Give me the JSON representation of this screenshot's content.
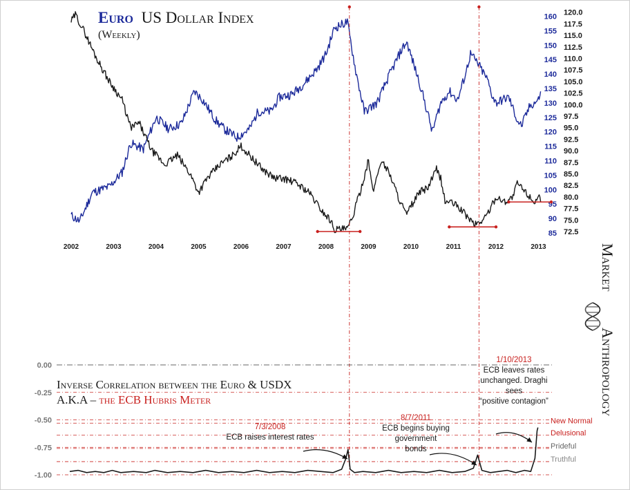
{
  "colors": {
    "euro": "#1a1a1a",
    "usdx": "#1c2a9a",
    "red": "#c8201e",
    "gray": "#666666",
    "bg": "#ffffff"
  },
  "branding": {
    "word1": "Market",
    "word2": "Anthropology",
    "logo_icon": "dna-helix-icon"
  },
  "chart_data": [
    {
      "type": "line",
      "title_part1": "Euro",
      "title_part2": "US Dollar Index",
      "subtitle": "(Weekly)",
      "x_ticks": [
        "2002",
        "2003",
        "2004",
        "2005",
        "2006",
        "2007",
        "2008",
        "2009",
        "2010",
        "2011",
        "2012",
        "2013"
      ],
      "y_left_ticks": [
        "160",
        "155",
        "150",
        "145",
        "140",
        "135",
        "130",
        "125",
        "120",
        "115",
        "110",
        "105",
        "100",
        "95",
        "90",
        "85"
      ],
      "y_right_ticks": [
        "120.0",
        "117.5",
        "115.0",
        "112.5",
        "110.0",
        "107.5",
        "105.0",
        "102.5",
        "100.0",
        "97.5",
        "95.0",
        "92.5",
        "90.0",
        "87.5",
        "85.0",
        "82.5",
        "80.0",
        "77.5",
        "75.0",
        "72.5"
      ],
      "y_left_range": [
        85,
        160
      ],
      "y_right_range": [
        72.5,
        120
      ],
      "series": [
        {
          "name": "Euro",
          "color": "#1c2a9a",
          "axis": "left",
          "points": [
            [
              2002.0,
              91
            ],
            [
              2002.2,
              89
            ],
            [
              2002.5,
              99
            ],
            [
              2002.9,
              101
            ],
            [
              2003.2,
              106
            ],
            [
              2003.4,
              116
            ],
            [
              2003.7,
              114
            ],
            [
              2004.0,
              125
            ],
            [
              2004.3,
              121
            ],
            [
              2004.6,
              123
            ],
            [
              2004.9,
              134
            ],
            [
              2005.1,
              131
            ],
            [
              2005.4,
              124
            ],
            [
              2005.6,
              121
            ],
            [
              2005.9,
              118
            ],
            [
              2006.2,
              121
            ],
            [
              2006.4,
              127
            ],
            [
              2006.7,
              127
            ],
            [
              2006.9,
              132
            ],
            [
              2007.2,
              133
            ],
            [
              2007.5,
              137
            ],
            [
              2007.8,
              142
            ],
            [
              2008.0,
              147
            ],
            [
              2008.2,
              156
            ],
            [
              2008.5,
              158
            ],
            [
              2008.7,
              141
            ],
            [
              2008.9,
              127
            ],
            [
              2009.2,
              130
            ],
            [
              2009.5,
              140
            ],
            [
              2009.8,
              149
            ],
            [
              2009.9,
              151
            ],
            [
              2010.2,
              137
            ],
            [
              2010.4,
              126
            ],
            [
              2010.5,
              120
            ],
            [
              2010.7,
              130
            ],
            [
              2010.9,
              134
            ],
            [
              2011.1,
              131
            ],
            [
              2011.3,
              141
            ],
            [
              2011.4,
              147
            ],
            [
              2011.6,
              143
            ],
            [
              2011.8,
              138
            ],
            [
              2011.9,
              133
            ],
            [
              2012.0,
              130
            ],
            [
              2012.3,
              132
            ],
            [
              2012.5,
              124
            ],
            [
              2012.6,
              122
            ],
            [
              2012.8,
              129
            ],
            [
              2013.0,
              131
            ],
            [
              2013.05,
              134
            ]
          ]
        },
        {
          "name": "US Dollar Index",
          "color": "#1a1a1a",
          "axis": "right",
          "points": [
            [
              2002.0,
              118
            ],
            [
              2002.1,
              119.5
            ],
            [
              2002.3,
              116
            ],
            [
              2002.6,
              110
            ],
            [
              2002.9,
              105
            ],
            [
              2003.2,
              101
            ],
            [
              2003.4,
              95
            ],
            [
              2003.6,
              96
            ],
            [
              2003.9,
              90
            ],
            [
              2004.2,
              87
            ],
            [
              2004.5,
              89
            ],
            [
              2004.8,
              85
            ],
            [
              2005.0,
              81
            ],
            [
              2005.2,
              84
            ],
            [
              2005.5,
              87
            ],
            [
              2005.8,
              89
            ],
            [
              2006.0,
              91
            ],
            [
              2006.2,
              89
            ],
            [
              2006.5,
              86
            ],
            [
              2006.8,
              84
            ],
            [
              2007.0,
              84
            ],
            [
              2007.3,
              83
            ],
            [
              2007.6,
              81
            ],
            [
              2007.9,
              77
            ],
            [
              2008.1,
              75
            ],
            [
              2008.2,
              73
            ],
            [
              2008.5,
              73
            ],
            [
              2008.6,
              75
            ],
            [
              2008.8,
              81
            ],
            [
              2009.0,
              88
            ],
            [
              2009.1,
              81
            ],
            [
              2009.3,
              88
            ],
            [
              2009.5,
              85
            ],
            [
              2009.7,
              80
            ],
            [
              2009.9,
              76
            ],
            [
              2010.0,
              78
            ],
            [
              2010.2,
              81
            ],
            [
              2010.4,
              82
            ],
            [
              2010.6,
              86
            ],
            [
              2010.7,
              84
            ],
            [
              2010.8,
              79
            ],
            [
              2010.9,
              79
            ],
            [
              2011.1,
              78
            ],
            [
              2011.3,
              76
            ],
            [
              2011.5,
              74
            ],
            [
              2011.7,
              75
            ],
            [
              2011.9,
              78
            ],
            [
              2012.0,
              80
            ],
            [
              2012.2,
              79
            ],
            [
              2012.4,
              80
            ],
            [
              2012.5,
              83
            ],
            [
              2012.7,
              81
            ],
            [
              2012.9,
              79
            ],
            [
              2013.0,
              80
            ],
            [
              2013.05,
              79
            ]
          ]
        }
      ],
      "support_lines": [
        {
          "x_from": 2007.8,
          "x_to": 2008.8,
          "y": 72.5
        },
        {
          "x_from": 2010.9,
          "x_to": 2012.0,
          "y": 73.5
        },
        {
          "x_from": 2012.3,
          "x_to": 2013.3,
          "y": 78.9
        }
      ],
      "event_years": [
        2008.55,
        2011.6
      ]
    },
    {
      "type": "line",
      "title_line1": "Inverse Correlation between the Euro & USDX",
      "title_line2_prefix": "A.K.A – ",
      "title_line2_red": "the ECB Hubris Meter",
      "y_ticks": [
        "0.00",
        "-0.25",
        "-0.50",
        "-0.75",
        "-1.00"
      ],
      "y_range": [
        -1.0,
        0.0
      ],
      "levels": [
        {
          "label": "New Normal",
          "value": -0.53,
          "color": "#c8201e"
        },
        {
          "label": "Delusional",
          "value": -0.64,
          "color": "#c8201e"
        },
        {
          "label": "Prideful",
          "value": -0.76,
          "color": "#666666"
        },
        {
          "label": "Truthful",
          "value": -0.88,
          "color": "#888888"
        }
      ],
      "series": [
        {
          "name": "Correlation",
          "color": "#1a1a1a",
          "points": [
            [
              2002.0,
              -0.97
            ],
            [
              2002.2,
              -0.96
            ],
            [
              2002.4,
              -0.98
            ],
            [
              2002.6,
              -0.97
            ],
            [
              2002.8,
              -0.98
            ],
            [
              2003.0,
              -0.96
            ],
            [
              2003.2,
              -0.98
            ],
            [
              2003.5,
              -0.97
            ],
            [
              2003.8,
              -0.98
            ],
            [
              2004.0,
              -0.96
            ],
            [
              2004.3,
              -0.98
            ],
            [
              2004.6,
              -0.97
            ],
            [
              2004.9,
              -0.98
            ],
            [
              2005.2,
              -0.96
            ],
            [
              2005.5,
              -0.98
            ],
            [
              2005.8,
              -0.97
            ],
            [
              2006.1,
              -0.98
            ],
            [
              2006.4,
              -0.96
            ],
            [
              2006.7,
              -0.98
            ],
            [
              2007.0,
              -0.97
            ],
            [
              2007.3,
              -0.98
            ],
            [
              2007.6,
              -0.96
            ],
            [
              2007.9,
              -0.97
            ],
            [
              2008.2,
              -0.98
            ],
            [
              2008.4,
              -0.95
            ],
            [
              2008.5,
              -0.85
            ],
            [
              2008.55,
              -0.77
            ],
            [
              2008.6,
              -0.95
            ],
            [
              2008.7,
              -0.98
            ],
            [
              2008.9,
              -0.97
            ],
            [
              2009.2,
              -0.98
            ],
            [
              2009.5,
              -0.96
            ],
            [
              2009.8,
              -0.98
            ],
            [
              2010.1,
              -0.97
            ],
            [
              2010.4,
              -0.98
            ],
            [
              2010.7,
              -0.96
            ],
            [
              2011.0,
              -0.98
            ],
            [
              2011.3,
              -0.97
            ],
            [
              2011.5,
              -0.94
            ],
            [
              2011.6,
              -0.82
            ],
            [
              2011.7,
              -0.96
            ],
            [
              2011.9,
              -0.98
            ],
            [
              2012.1,
              -0.97
            ],
            [
              2012.3,
              -0.96
            ],
            [
              2012.5,
              -0.98
            ],
            [
              2012.7,
              -0.96
            ],
            [
              2012.85,
              -0.97
            ],
            [
              2012.95,
              -0.85
            ],
            [
              2013.0,
              -0.6
            ],
            [
              2013.02,
              -0.57
            ]
          ]
        }
      ],
      "annotations": [
        {
          "date": "7/3/2008",
          "text": [
            "ECB raises interest rates"
          ],
          "x": 2008.55
        },
        {
          "date": "8/7/2011",
          "text": [
            "ECB begins buying",
            "government",
            "bonds"
          ],
          "x": 2011.6
        },
        {
          "date": "1/10/2013",
          "text": [
            "ECB leaves rates",
            "unchanged. Draghi",
            "sees",
            "“positive contagion”"
          ],
          "x": 2013.0
        }
      ]
    }
  ]
}
